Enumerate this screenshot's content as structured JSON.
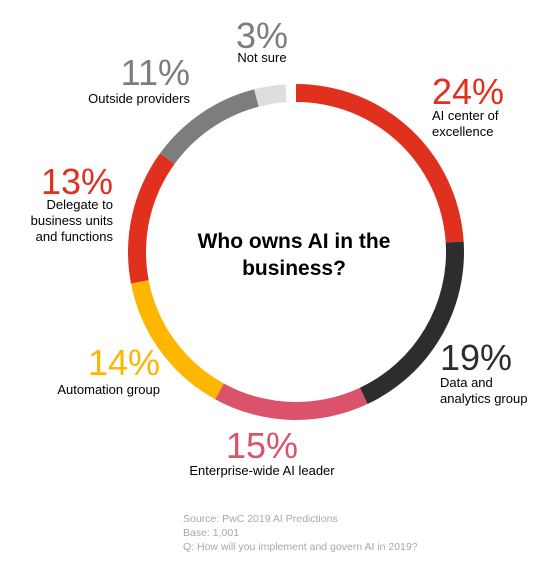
{
  "chart_data": {
    "type": "donut",
    "title": "Who owns AI in the business?",
    "categories": [
      "AI center of excellence",
      "Data and analytics group",
      "Enterprise-wide AI leader",
      "Automation group",
      "Delegate to business units and functions",
      "Outside providers",
      "Not sure"
    ],
    "values": [
      24,
      19,
      15,
      14,
      13,
      11,
      3
    ],
    "value_labels": [
      "24%",
      "19%",
      "15%",
      "14%",
      "13%",
      "11%",
      "3%"
    ],
    "colors": [
      "#e0301e",
      "#2d2d2d",
      "#db536a",
      "#ffb600",
      "#e0301e",
      "#7d7d7d",
      "#dedede"
    ],
    "notes": [
      "Source: PwC 2019 AI Predictions",
      "Base: 1,001",
      "Q: How will you implement and govern AI in 2019?"
    ]
  }
}
